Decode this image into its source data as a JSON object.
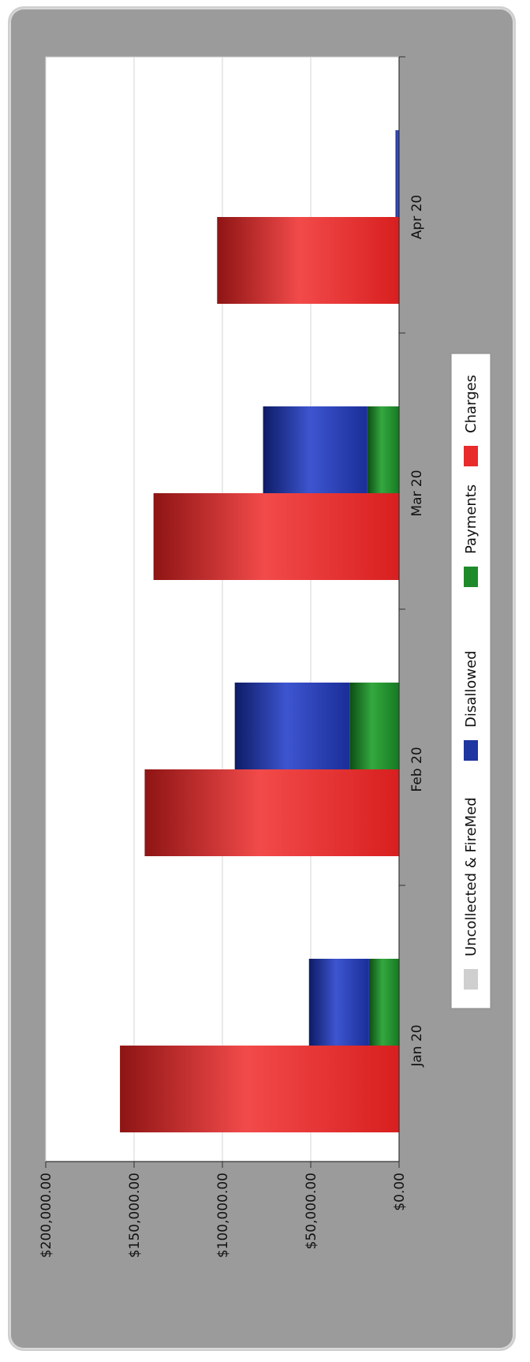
{
  "chart_data": {
    "type": "bar",
    "stacked_series": [
      "Payments",
      "Disallowed"
    ],
    "categories": [
      "Jan 20",
      "Feb 20",
      "Mar 20",
      "Apr 20"
    ],
    "series": [
      {
        "name": "Uncollected & FireMed",
        "values": [
          0,
          0,
          0,
          0
        ],
        "color": "#cfcfcf"
      },
      {
        "name": "Disallowed",
        "values": [
          34000,
          65000,
          59000,
          2000
        ],
        "color": "#1f35a0"
      },
      {
        "name": "Payments",
        "values": [
          17000,
          28000,
          18000,
          0
        ],
        "color": "#1f8a2a"
      },
      {
        "name": "Charges",
        "values": [
          158000,
          144000,
          139000,
          103000
        ],
        "color": "#e82b2b"
      }
    ],
    "y_ticks": [
      "$0.00",
      "$50,000.00",
      "$100,000.00",
      "$150,000.00",
      "$200,000.00"
    ],
    "ylim": [
      0,
      200000
    ],
    "grid": true,
    "legend_placement": "bottom",
    "orientation": "rotated 90° clockwise"
  }
}
